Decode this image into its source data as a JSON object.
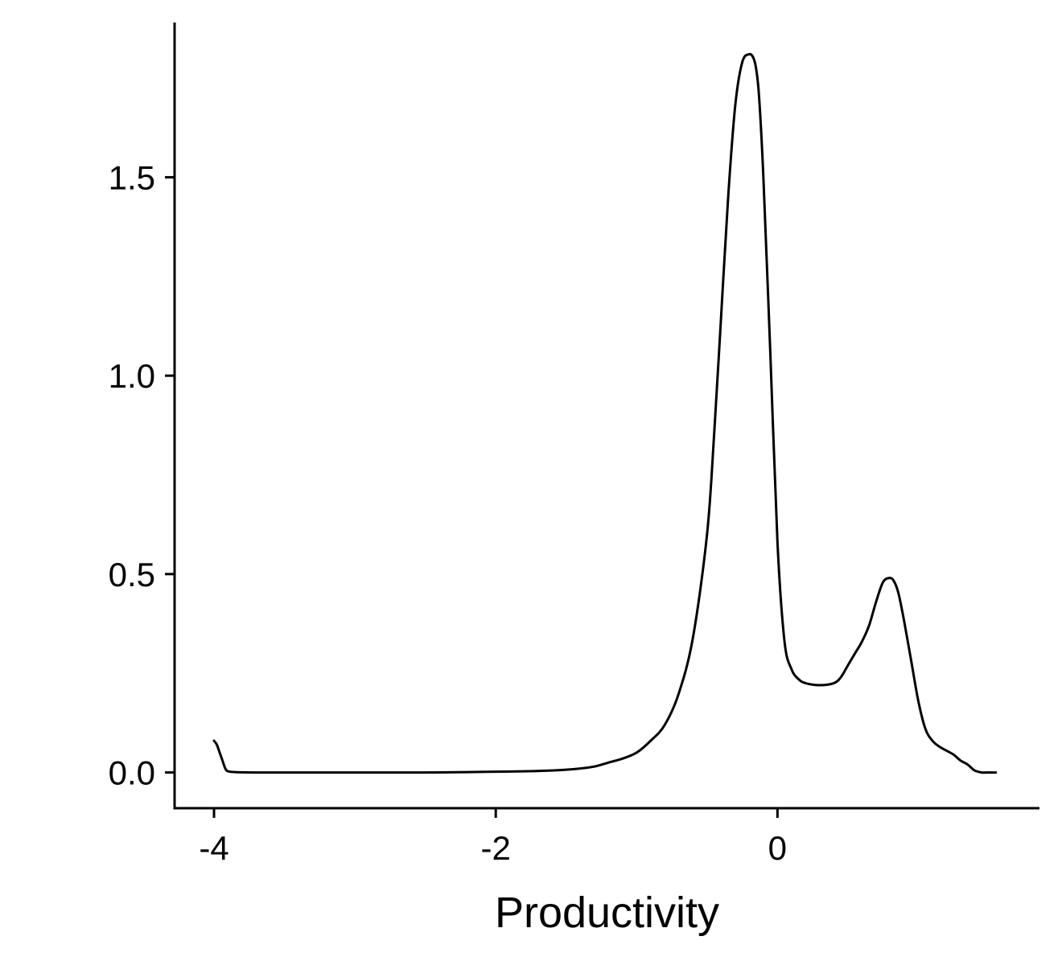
{
  "chart_data": {
    "type": "line",
    "title": "",
    "xlabel": "Productivity",
    "ylabel": "",
    "xlim": [
      -4.28,
      1.86
    ],
    "ylim": [
      -0.09,
      1.89
    ],
    "x_ticks": [
      {
        "value": -4,
        "label": "-4"
      },
      {
        "value": -2,
        "label": "-2"
      },
      {
        "value": 0,
        "label": "0"
      }
    ],
    "y_ticks": [
      {
        "value": 0.0,
        "label": "0.0"
      },
      {
        "value": 0.5,
        "label": "0.5"
      },
      {
        "value": 1.0,
        "label": "1.0"
      },
      {
        "value": 1.5,
        "label": "1.5"
      }
    ],
    "grid": false,
    "legend": "none",
    "colors": {
      "line": "#000000",
      "axis": "#000000",
      "background": "#ffffff"
    },
    "series": [
      {
        "x": [
          -4.0,
          -3.98,
          -3.96,
          -3.94,
          -3.92,
          -3.9,
          -3.85,
          -3.7,
          -3.5,
          -3.2,
          -3.0,
          -2.8,
          -2.5,
          -2.2,
          -2.0,
          -1.8,
          -1.6,
          -1.5,
          -1.4,
          -1.3,
          -1.2,
          -1.1,
          -1.0,
          -0.9,
          -0.8,
          -0.7,
          -0.6,
          -0.5,
          -0.45,
          -0.4,
          -0.35,
          -0.3,
          -0.25,
          -0.2,
          -0.17,
          -0.15,
          -0.13,
          -0.1,
          -0.05,
          0.0,
          0.05,
          0.1,
          0.15,
          0.2,
          0.3,
          0.4,
          0.45,
          0.5,
          0.55,
          0.6,
          0.65,
          0.7,
          0.75,
          0.8,
          0.83,
          0.86,
          0.9,
          0.95,
          1.0,
          1.05,
          1.1,
          1.15,
          1.2,
          1.25,
          1.3,
          1.35,
          1.4,
          1.45,
          1.5,
          1.55
        ],
        "y": [
          0.08,
          0.07,
          0.05,
          0.03,
          0.01,
          0.003,
          0.001,
          0.0,
          0.0,
          0.0,
          0.0,
          0.0,
          0.0,
          0.001,
          0.002,
          0.003,
          0.005,
          0.007,
          0.01,
          0.015,
          0.025,
          0.035,
          0.05,
          0.08,
          0.12,
          0.2,
          0.34,
          0.6,
          0.85,
          1.15,
          1.45,
          1.68,
          1.79,
          1.81,
          1.8,
          1.77,
          1.7,
          1.5,
          1.05,
          0.58,
          0.33,
          0.26,
          0.235,
          0.225,
          0.22,
          0.225,
          0.24,
          0.27,
          0.3,
          0.33,
          0.37,
          0.43,
          0.48,
          0.49,
          0.48,
          0.45,
          0.38,
          0.28,
          0.18,
          0.11,
          0.08,
          0.065,
          0.055,
          0.045,
          0.03,
          0.02,
          0.005,
          0.0,
          0.0,
          0.0
        ]
      }
    ]
  }
}
